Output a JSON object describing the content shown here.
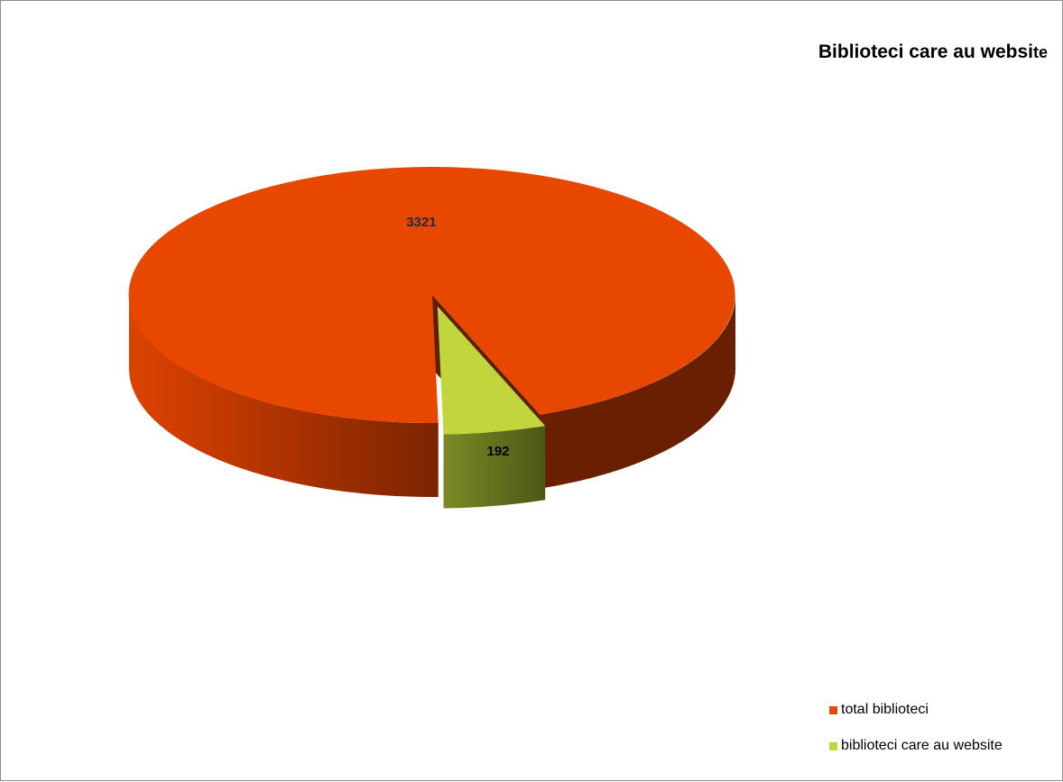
{
  "chart_data": {
    "type": "pie",
    "title_main": "Biblioteci care au websi",
    "title_tail": "te",
    "categories": [
      "total biblioteci",
      "biblioteci care au website"
    ],
    "values": [
      3321,
      192
    ],
    "data_labels": [
      "3321",
      "192"
    ],
    "colors": {
      "total biblioteci": "#e84700",
      "biblioteci care au website": "#c1d53c"
    },
    "legend_position": "bottom-right",
    "exploded": true,
    "three_d": true
  }
}
